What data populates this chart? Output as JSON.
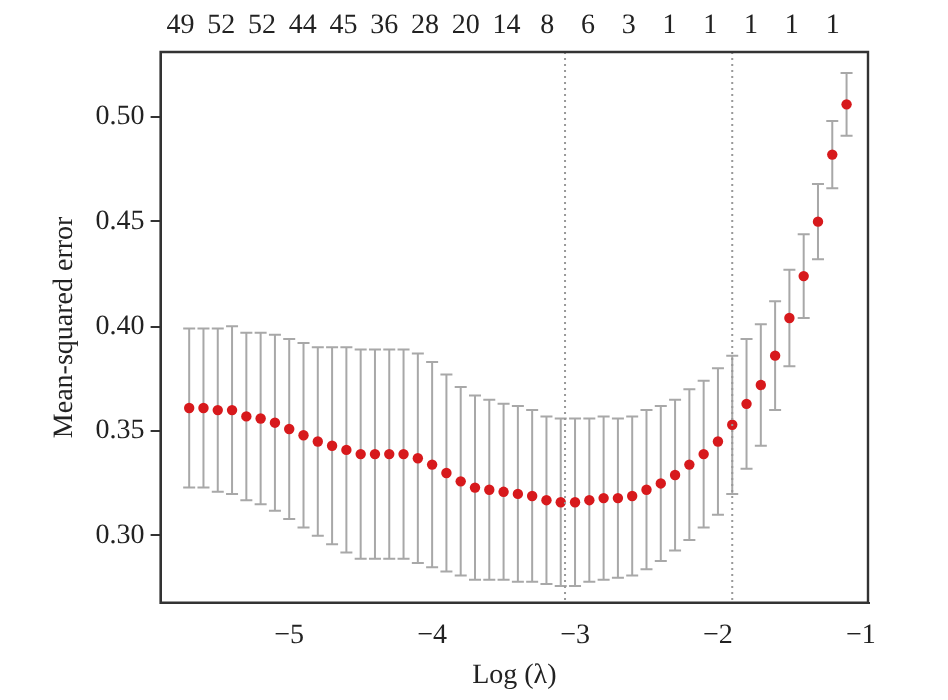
{
  "chart_data": {
    "type": "scatter",
    "xlabel": "Log (λ)",
    "ylabel": "Mean-squared error",
    "x": [
      -5.7,
      -5.6,
      -5.5,
      -5.4,
      -5.3,
      -5.2,
      -5.1,
      -5.0,
      -4.9,
      -4.8,
      -4.7,
      -4.6,
      -4.5,
      -4.4,
      -4.3,
      -4.2,
      -4.1,
      -4.0,
      -3.9,
      -3.8,
      -3.7,
      -3.6,
      -3.5,
      -3.4,
      -3.3,
      -3.2,
      -3.1,
      -3.0,
      -2.9,
      -2.8,
      -2.7,
      -2.6,
      -2.5,
      -2.4,
      -2.3,
      -2.2,
      -2.1,
      -2.0,
      -1.9,
      -1.8,
      -1.7,
      -1.6,
      -1.5,
      -1.4,
      -1.3,
      -1.2,
      -1.1
    ],
    "series": [
      {
        "color": "#d7191c",
        "values": [
          0.361,
          0.361,
          0.36,
          0.36,
          0.357,
          0.356,
          0.354,
          0.351,
          0.348,
          0.345,
          0.343,
          0.341,
          0.339,
          0.339,
          0.339,
          0.339,
          0.337,
          0.334,
          0.33,
          0.326,
          0.323,
          0.322,
          0.321,
          0.32,
          0.319,
          0.317,
          0.316,
          0.316,
          0.317,
          0.318,
          0.318,
          0.319,
          0.322,
          0.325,
          0.329,
          0.334,
          0.339,
          0.345,
          0.353,
          0.363,
          0.372,
          0.386,
          0.404,
          0.424,
          0.45,
          0.482,
          0.506
        ],
        "errors": [
          0.038,
          0.038,
          0.039,
          0.04,
          0.04,
          0.041,
          0.042,
          0.043,
          0.044,
          0.045,
          0.047,
          0.049,
          0.05,
          0.05,
          0.05,
          0.05,
          0.05,
          0.049,
          0.047,
          0.045,
          0.044,
          0.043,
          0.042,
          0.042,
          0.041,
          0.04,
          0.04,
          0.04,
          0.039,
          0.039,
          0.038,
          0.038,
          0.038,
          0.037,
          0.036,
          0.036,
          0.035,
          0.035,
          0.033,
          0.031,
          0.029,
          0.026,
          0.023,
          0.02,
          0.018,
          0.016,
          0.015
        ]
      }
    ],
    "marker": "circle",
    "xlim": [
      -5.9,
      -0.95
    ],
    "xticks": [
      {
        "value": -5,
        "label": "−5"
      },
      {
        "value": -4,
        "label": "−4"
      },
      {
        "value": -3,
        "label": "−3"
      },
      {
        "value": -2,
        "label": "−2"
      },
      {
        "value": -1,
        "label": "−1"
      }
    ],
    "ylim": [
      0.268,
      0.531
    ],
    "yticks": [
      {
        "value": 0.3,
        "label": "0.30"
      },
      {
        "value": 0.35,
        "label": "0.35"
      },
      {
        "value": 0.4,
        "label": "0.40"
      },
      {
        "value": 0.45,
        "label": "0.45"
      },
      {
        "value": 0.5,
        "label": "0.50"
      }
    ],
    "annotations": [
      "49",
      "52",
      "52",
      "44",
      "45",
      "36",
      "28",
      "20",
      "14",
      "8",
      "6",
      "3",
      "1",
      "1",
      "1",
      "1",
      "1"
    ],
    "ref_lines": [
      {
        "axis": "x",
        "value": -3.07,
        "color": "#999999",
        "line_style": "dotted"
      },
      {
        "axis": "x",
        "value": -1.9,
        "color": "#999999",
        "line_style": "dotted"
      }
    ],
    "grid": false,
    "legend": false
  }
}
